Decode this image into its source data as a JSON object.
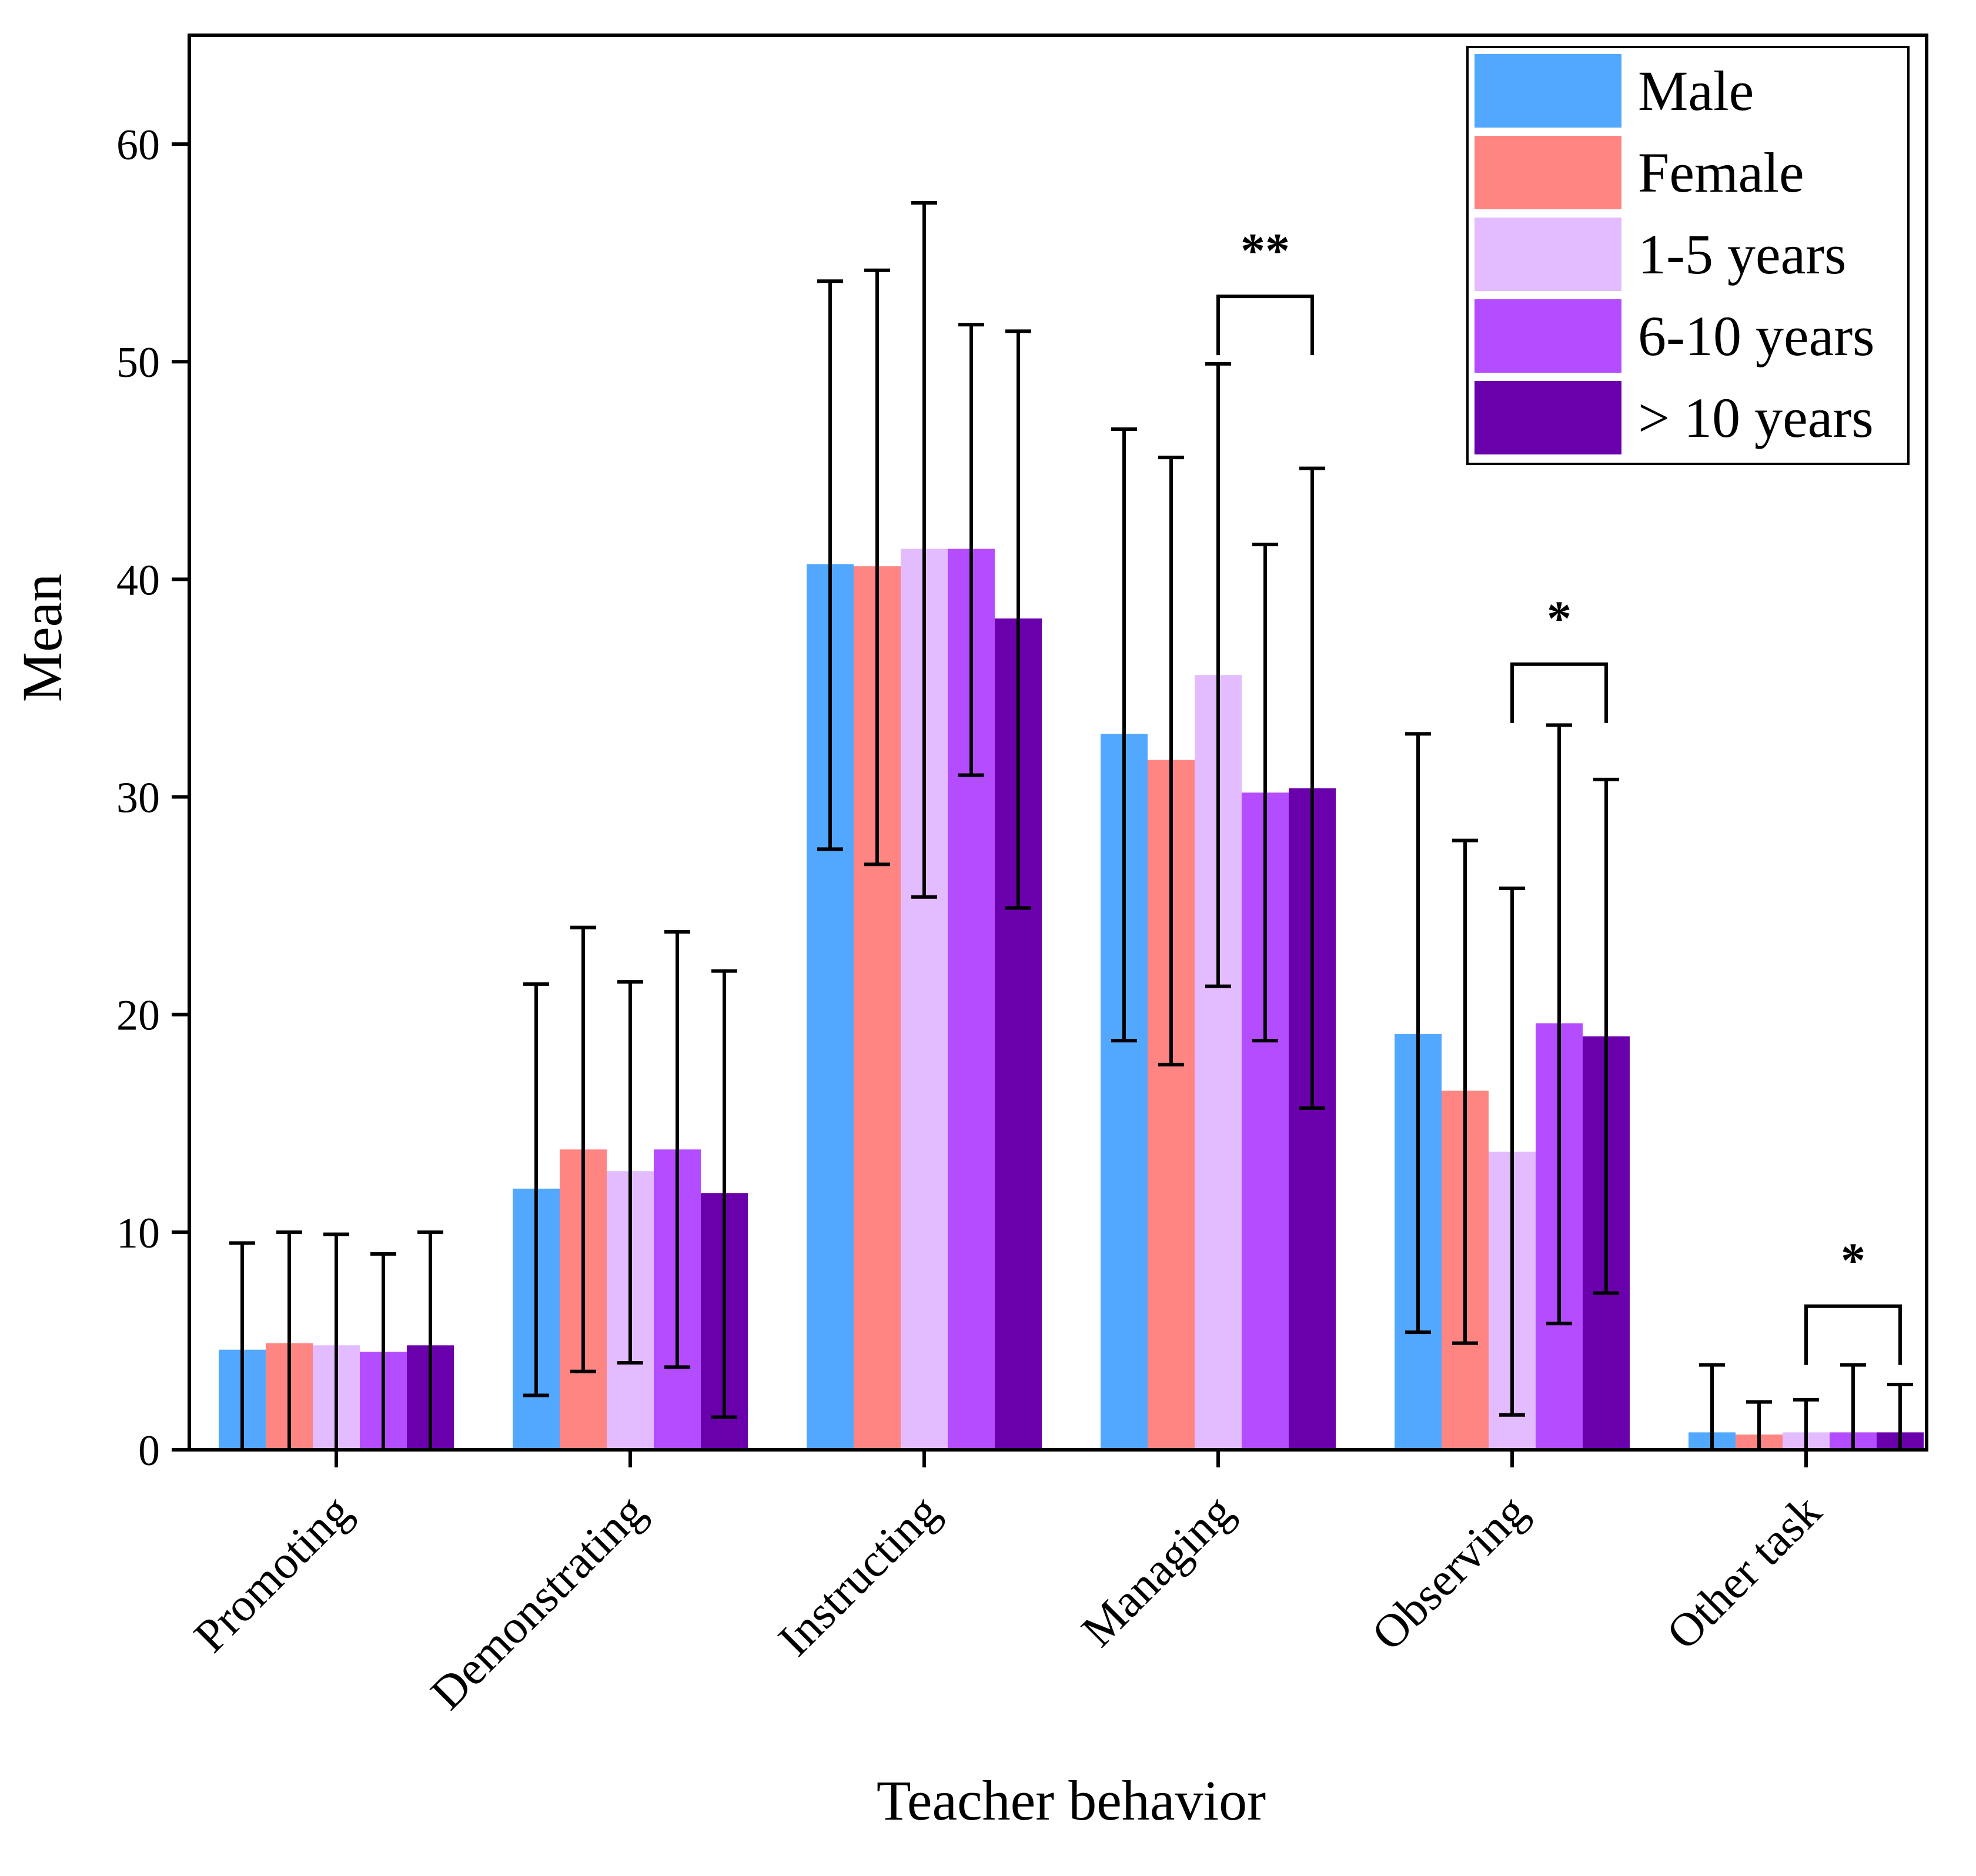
{
  "chart_data": {
    "type": "bar",
    "xlabel": "Teacher behavior",
    "ylabel": "Mean",
    "ylim": [
      0,
      65
    ],
    "yticks": [
      0,
      10,
      20,
      30,
      40,
      50,
      60
    ],
    "grid": false,
    "legend_position": "top-right",
    "categories": [
      "Promoting",
      "Demonstrating",
      "Instructing",
      "Managing",
      "Observing",
      "Other task"
    ],
    "series": [
      {
        "name": "Male",
        "color": "#52a8ff",
        "values": [
          4.6,
          12.0,
          40.7,
          32.9,
          19.1,
          0.8
        ],
        "err_low": [
          0.0,
          2.5,
          27.6,
          18.8,
          5.4,
          0.0
        ],
        "err_high": [
          9.5,
          21.4,
          53.7,
          46.9,
          32.9,
          3.9
        ]
      },
      {
        "name": "Female",
        "color": "#ff8583",
        "values": [
          4.9,
          13.8,
          40.6,
          31.7,
          16.5,
          0.7
        ],
        "err_low": [
          0.0,
          3.6,
          26.9,
          17.7,
          4.9,
          0.0
        ],
        "err_high": [
          10.0,
          24.0,
          54.2,
          45.6,
          28.0,
          2.2
        ]
      },
      {
        "name": "1-5 years",
        "color": "#e3bbff",
        "values": [
          4.8,
          12.8,
          41.4,
          35.6,
          13.7,
          0.8
        ],
        "err_low": [
          0.0,
          4.0,
          25.4,
          21.3,
          1.6,
          0.0
        ],
        "err_high": [
          9.9,
          21.5,
          57.3,
          49.9,
          25.8,
          2.3
        ]
      },
      {
        "name": "6-10 years",
        "color": "#b44cff",
        "values": [
          4.5,
          13.8,
          41.4,
          30.2,
          19.6,
          0.8
        ],
        "err_low": [
          0.0,
          3.8,
          31.0,
          18.8,
          5.8,
          0.0
        ],
        "err_high": [
          9.0,
          23.8,
          51.7,
          41.6,
          33.3,
          3.9
        ]
      },
      {
        "name": "> 10 years",
        "color": "#6a00ab",
        "values": [
          4.8,
          11.8,
          38.2,
          30.4,
          19.0,
          0.8
        ],
        "err_low": [
          0.0,
          1.5,
          24.9,
          15.7,
          7.2,
          0.0
        ],
        "err_high": [
          10.0,
          22.0,
          51.4,
          45.1,
          30.8,
          3.0
        ]
      }
    ],
    "annotations": [
      {
        "category": "Managing",
        "from_series": 2,
        "to_series": 4,
        "label": "**",
        "level": 53.0
      },
      {
        "category": "Observing",
        "from_series": 2,
        "to_series": 4,
        "label": "*",
        "level": 36.1
      },
      {
        "category": "Other task",
        "from_series": 2,
        "to_series": 4,
        "label": "*",
        "level": 6.6
      }
    ]
  }
}
